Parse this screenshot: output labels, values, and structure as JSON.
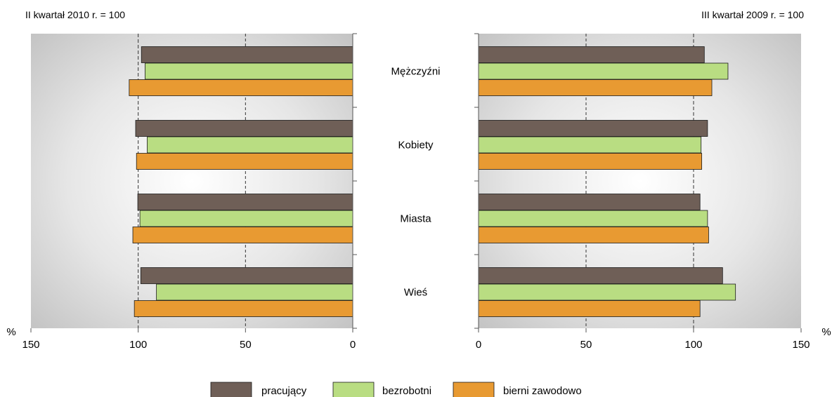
{
  "chart_data": {
    "type": "bar",
    "orientation": "horizontal",
    "categories": [
      "Mężczyźni",
      "Kobiety",
      "Miasta",
      "Wieś"
    ],
    "series": [
      {
        "name": "pracujący",
        "color": "#6f5f57"
      },
      {
        "name": "bezrobotni",
        "color": "#b9dd82"
      },
      {
        "name": "bierni zawodowo",
        "color": "#e89a32"
      }
    ],
    "panels": [
      {
        "side": "left",
        "note": "II kwartał 2010 r. = 100",
        "axis_unit": "%",
        "xlim": [
          150,
          0
        ],
        "ticks": [
          150,
          100,
          50,
          0
        ],
        "tick_labels": [
          "150",
          "100",
          "50",
          "0"
        ],
        "values": [
          [
            98.5,
            96.8,
            104.2
          ],
          [
            101.2,
            95.8,
            100.8
          ],
          [
            100.2,
            99.2,
            102.5
          ],
          [
            98.8,
            91.5,
            101.8
          ]
        ]
      },
      {
        "side": "right",
        "note": "III kwartał 2009 r. = 100",
        "axis_unit": "%",
        "xlim": [
          0,
          150
        ],
        "ticks": [
          0,
          50,
          100,
          150
        ],
        "tick_labels": [
          "0",
          "50",
          "100",
          "150"
        ],
        "values": [
          [
            105.0,
            116.0,
            108.5
          ],
          [
            106.5,
            103.5,
            103.8
          ],
          [
            103.0,
            106.5,
            107.0
          ],
          [
            113.5,
            119.5,
            103.0
          ]
        ]
      }
    ],
    "grid": true,
    "legend_position": "bottom"
  }
}
